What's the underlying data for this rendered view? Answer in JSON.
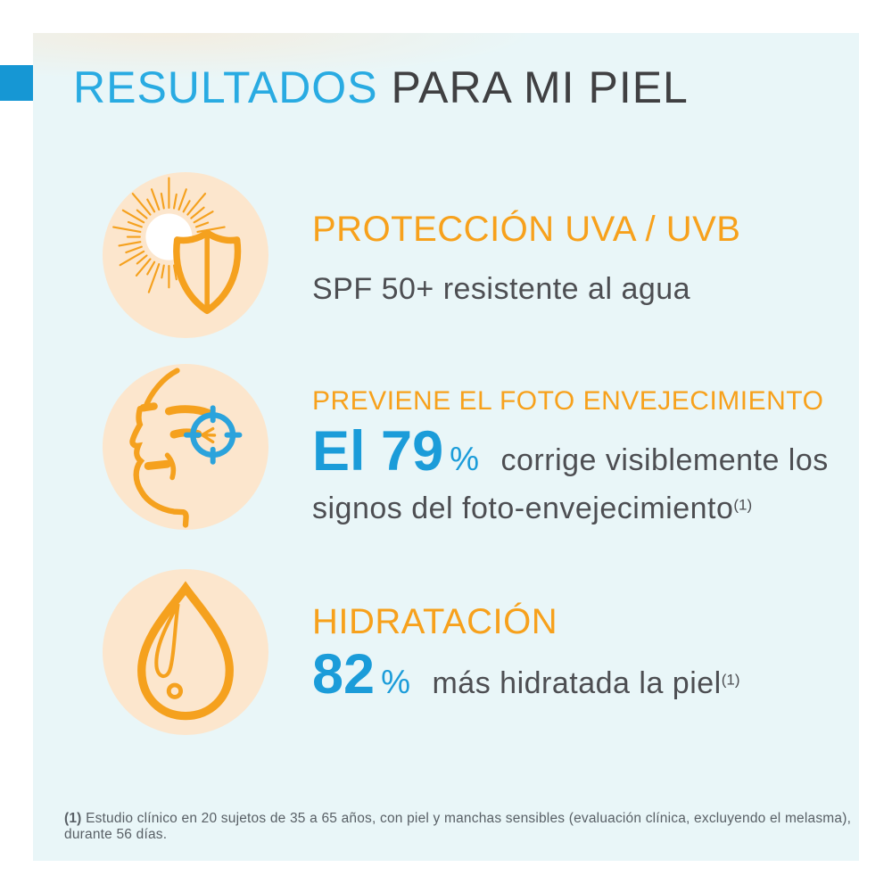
{
  "title": {
    "highlight": "RESULTADOS",
    "rest": "PARA MI PIEL"
  },
  "colors": {
    "title_blue": "#29ABE2",
    "title_gray": "#404042",
    "accent_square_blue": "#1697D4",
    "panel_background": "#E9F6F8",
    "heading_orange": "#F7A11C",
    "icon_circle_peach": "#FCE6CD",
    "icon_stroke_orange": "#F5A11E",
    "stat_blue": "#1B9CD9",
    "target_blue": "#2BA3DC",
    "body_gray": "#4D4E52"
  },
  "sections": [
    {
      "icon": "sun-shield-icon",
      "heading": "PROTECCIÓN UVA / UVB",
      "detail": "SPF 50+ resistente al agua"
    },
    {
      "icon": "face-target-icon",
      "heading": "PREVIENE EL FOTO ENVEJECIMIENTO",
      "stat": "El 79",
      "stat_unit": "%",
      "detail": "corrige visiblemente los signos del foto-envejecimiento",
      "footnote_ref": "(1)"
    },
    {
      "icon": "water-drop-icon",
      "heading": "HIDRATACIÓN",
      "stat": "82",
      "stat_unit": "%",
      "detail": "más hidratada la piel",
      "footnote_ref": "(1)"
    }
  ],
  "footnote": {
    "marker": "(1)",
    "text": "Estudio clínico en 20 sujetos de 35 a 65 años, con piel y manchas sensibles (evaluación clínica, excluyendo el melasma), durante 56 días."
  }
}
